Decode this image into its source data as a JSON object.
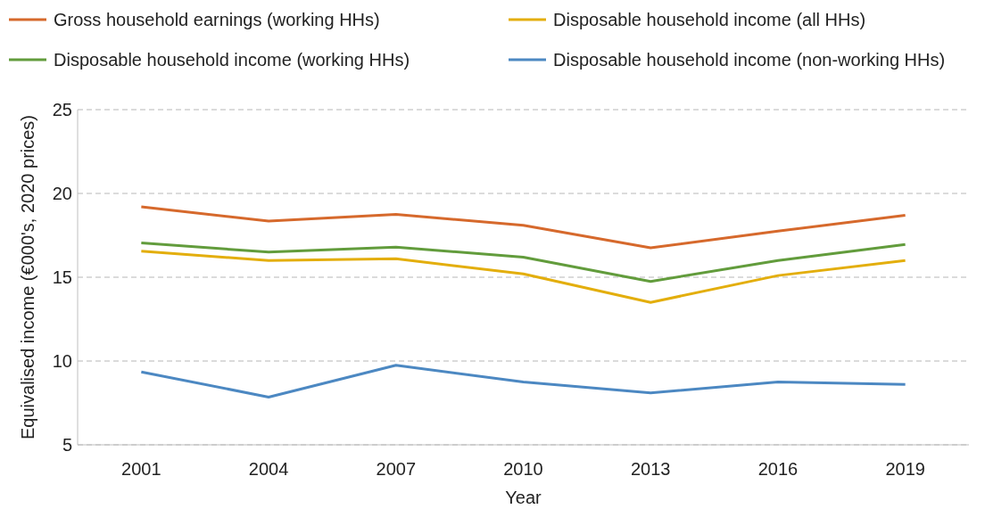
{
  "chart_data": {
    "type": "line",
    "xlabel": "Year",
    "ylabel": "Equivalised income (€000's, 2020 prices)",
    "categories": [
      "2001",
      "2004",
      "2007",
      "2010",
      "2013",
      "2016",
      "2019"
    ],
    "series": [
      {
        "name": "Gross household earnings (working HHs)",
        "color": "#d6692c",
        "values": [
          19.2,
          18.35,
          18.75,
          18.1,
          16.75,
          17.75,
          18.7
        ]
      },
      {
        "name": "Disposable household income (all HHs)",
        "color": "#e3ae0c",
        "values": [
          16.55,
          16,
          16.1,
          15.2,
          13.5,
          15.1,
          16
        ]
      },
      {
        "name": "Disposable household income (working HHs)",
        "color": "#629c3c",
        "values": [
          17.05,
          16.5,
          16.8,
          16.2,
          14.75,
          16,
          16.95
        ]
      },
      {
        "name": "Disposable household income (non-working HHs)",
        "color": "#4c88c2",
        "values": [
          9.35,
          7.85,
          9.75,
          8.75,
          8.1,
          8.75,
          8.6
        ]
      }
    ],
    "ylim": [
      5,
      25
    ],
    "yticks": [
      5,
      10,
      15,
      20,
      25
    ],
    "grid": "y",
    "legend": "top",
    "marker": "none",
    "line_style": "solid"
  }
}
